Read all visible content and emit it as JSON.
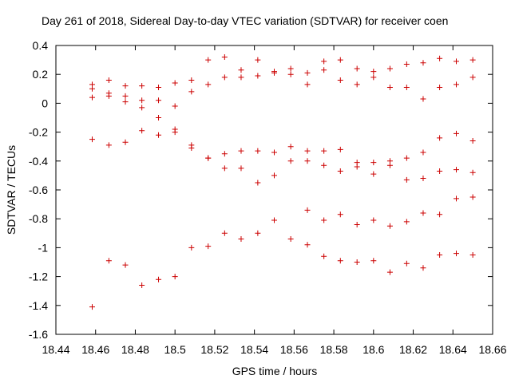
{
  "chart_data": {
    "type": "scatter",
    "title": "Day 261 of 2018, Sidereal Day-to-day VTEC variation (SDTVAR) for receiver coen",
    "xlabel": "GPS time / hours",
    "ylabel": "SDTVAR / TECUs",
    "xlim": [
      18.44,
      18.66
    ],
    "ylim": [
      -1.6,
      0.4
    ],
    "xticks": [
      18.44,
      18.46,
      18.48,
      18.5,
      18.52,
      18.54,
      18.56,
      18.58,
      18.6,
      18.62,
      18.64,
      18.66
    ],
    "xtick_labels": [
      "18.44",
      "18.46",
      "18.48",
      "18.5",
      "18.52",
      "18.54",
      "18.56",
      "18.58",
      "18.6",
      "18.62",
      "18.64",
      "18.66"
    ],
    "yticks": [
      0.4,
      0.2,
      0,
      -0.2,
      -0.4,
      -0.6,
      -0.8,
      -1,
      -1.2,
      -1.4,
      -1.6
    ],
    "ytick_labels": [
      "0.4",
      "0.2",
      "0",
      "-0.2",
      "-0.4",
      "-0.6",
      "-0.8",
      "-1",
      "-1.2",
      "-1.4",
      "-1.6"
    ],
    "grid": false,
    "marker": "+",
    "color": "#cc0000",
    "series": [
      {
        "name": "SDTVAR",
        "points": [
          [
            18.4583,
            0.13
          ],
          [
            18.4583,
            0.1
          ],
          [
            18.4583,
            0.04
          ],
          [
            18.4583,
            -0.25
          ],
          [
            18.4583,
            -1.41
          ],
          [
            18.4667,
            0.16
          ],
          [
            18.4667,
            0.07
          ],
          [
            18.4667,
            0.05
          ],
          [
            18.4667,
            -0.29
          ],
          [
            18.4667,
            -1.09
          ],
          [
            18.475,
            0.12
          ],
          [
            18.475,
            0.05
          ],
          [
            18.475,
            0.01
          ],
          [
            18.475,
            -0.27
          ],
          [
            18.475,
            -1.12
          ],
          [
            18.4833,
            0.12
          ],
          [
            18.4833,
            0.02
          ],
          [
            18.4833,
            -0.03
          ],
          [
            18.4833,
            -0.19
          ],
          [
            18.4833,
            -1.26
          ],
          [
            18.4917,
            0.11
          ],
          [
            18.4917,
            0.02
          ],
          [
            18.4917,
            -0.1
          ],
          [
            18.4917,
            -0.22
          ],
          [
            18.4917,
            -1.22
          ],
          [
            18.5,
            0.14
          ],
          [
            18.5,
            -0.02
          ],
          [
            18.5,
            -0.18
          ],
          [
            18.5,
            -0.2
          ],
          [
            18.5,
            -1.2
          ],
          [
            18.5083,
            0.16
          ],
          [
            18.5083,
            0.08
          ],
          [
            18.5083,
            -0.29
          ],
          [
            18.5083,
            -0.31
          ],
          [
            18.5083,
            -1.0
          ],
          [
            18.5167,
            0.3
          ],
          [
            18.5167,
            0.13
          ],
          [
            18.5167,
            -0.38
          ],
          [
            18.5167,
            -0.38
          ],
          [
            18.5167,
            -0.99
          ],
          [
            18.525,
            0.32
          ],
          [
            18.525,
            0.18
          ],
          [
            18.525,
            -0.35
          ],
          [
            18.525,
            -0.45
          ],
          [
            18.525,
            -0.9
          ],
          [
            18.5333,
            0.23
          ],
          [
            18.5333,
            0.18
          ],
          [
            18.5333,
            -0.33
          ],
          [
            18.5333,
            -0.45
          ],
          [
            18.5333,
            -0.94
          ],
          [
            18.5417,
            0.3
          ],
          [
            18.5417,
            0.19
          ],
          [
            18.5417,
            -0.33
          ],
          [
            18.5417,
            -0.55
          ],
          [
            18.5417,
            -0.9
          ],
          [
            18.55,
            0.22
          ],
          [
            18.55,
            0.21
          ],
          [
            18.55,
            -0.34
          ],
          [
            18.55,
            -0.5
          ],
          [
            18.55,
            -0.81
          ],
          [
            18.5583,
            0.24
          ],
          [
            18.5583,
            0.2
          ],
          [
            18.5583,
            -0.3
          ],
          [
            18.5583,
            -0.4
          ],
          [
            18.5583,
            -0.94
          ],
          [
            18.5667,
            0.21
          ],
          [
            18.5667,
            0.13
          ],
          [
            18.5667,
            -0.33
          ],
          [
            18.5667,
            -0.4
          ],
          [
            18.5667,
            -0.74
          ],
          [
            18.5667,
            -0.98
          ],
          [
            18.575,
            0.29
          ],
          [
            18.575,
            0.23
          ],
          [
            18.575,
            -0.33
          ],
          [
            18.575,
            -0.43
          ],
          [
            18.575,
            -0.81
          ],
          [
            18.575,
            -1.06
          ],
          [
            18.5833,
            0.3
          ],
          [
            18.5833,
            0.16
          ],
          [
            18.5833,
            -0.32
          ],
          [
            18.5833,
            -0.47
          ],
          [
            18.5833,
            -0.77
          ],
          [
            18.5833,
            -1.09
          ],
          [
            18.5917,
            0.24
          ],
          [
            18.5917,
            0.13
          ],
          [
            18.5917,
            -0.41
          ],
          [
            18.5917,
            -0.44
          ],
          [
            18.5917,
            -0.84
          ],
          [
            18.5917,
            -1.1
          ],
          [
            18.6,
            0.22
          ],
          [
            18.6,
            0.18
          ],
          [
            18.6,
            -0.41
          ],
          [
            18.6,
            -0.49
          ],
          [
            18.6,
            -0.81
          ],
          [
            18.6,
            -1.09
          ],
          [
            18.6083,
            0.24
          ],
          [
            18.6083,
            0.11
          ],
          [
            18.6083,
            -0.4
          ],
          [
            18.6083,
            -0.43
          ],
          [
            18.6083,
            -0.85
          ],
          [
            18.6083,
            -1.17
          ],
          [
            18.6167,
            0.27
          ],
          [
            18.6167,
            0.11
          ],
          [
            18.6167,
            -0.38
          ],
          [
            18.6167,
            -0.53
          ],
          [
            18.6167,
            -0.82
          ],
          [
            18.6167,
            -1.11
          ],
          [
            18.625,
            0.28
          ],
          [
            18.625,
            0.03
          ],
          [
            18.625,
            -0.34
          ],
          [
            18.625,
            -0.52
          ],
          [
            18.625,
            -0.76
          ],
          [
            18.625,
            -1.14
          ],
          [
            18.6333,
            0.31
          ],
          [
            18.6333,
            0.11
          ],
          [
            18.6333,
            -0.24
          ],
          [
            18.6333,
            -0.47
          ],
          [
            18.6333,
            -0.77
          ],
          [
            18.6333,
            -1.05
          ],
          [
            18.6417,
            0.29
          ],
          [
            18.6417,
            0.13
          ],
          [
            18.6417,
            -0.21
          ],
          [
            18.6417,
            -0.46
          ],
          [
            18.6417,
            -0.66
          ],
          [
            18.6417,
            -1.04
          ],
          [
            18.65,
            0.3
          ],
          [
            18.65,
            0.18
          ],
          [
            18.65,
            -0.26
          ],
          [
            18.65,
            -0.48
          ],
          [
            18.65,
            -0.65
          ],
          [
            18.65,
            -1.05
          ]
        ]
      }
    ]
  }
}
